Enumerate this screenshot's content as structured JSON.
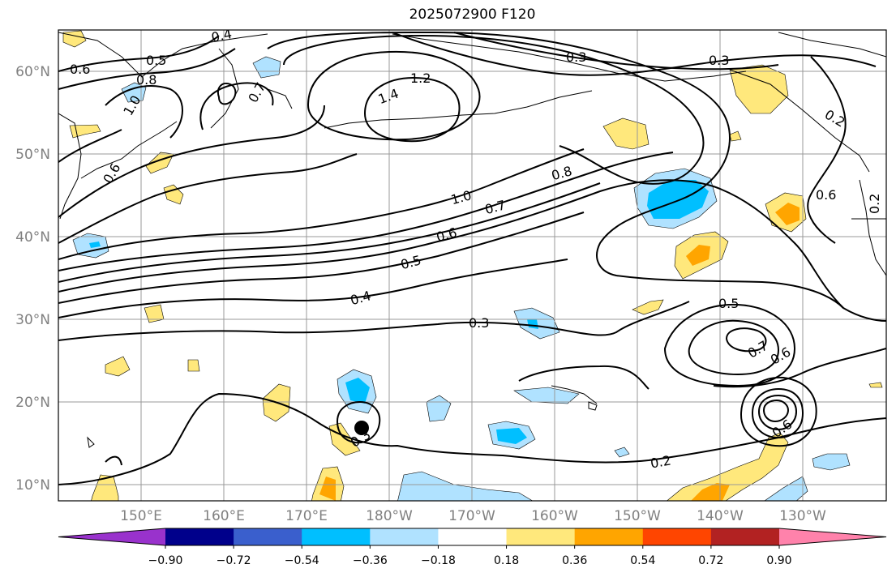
{
  "title": "2025072900 F120",
  "lat_labels": [
    "60°N",
    "50°N",
    "40°N",
    "30°N",
    "20°N",
    "10°N"
  ],
  "lon_labels": [
    "150°E",
    "160°E",
    "170°E",
    "180°W",
    "170°W",
    "160°W",
    "150°W",
    "140°W",
    "130°W"
  ],
  "contour_labels": [
    "0.4",
    "0.5",
    "0.6",
    "0.8",
    "1.0",
    "0.7",
    "1.2",
    "1.4",
    "0.3",
    "0.3",
    "0.2",
    "0.6",
    "0.2",
    "0.6",
    "0.8",
    "0.7",
    "1.0",
    "0.6",
    "0.5",
    "0.4",
    "0.3",
    "0.5",
    "0.7",
    "0.6",
    "0.6",
    "0.2",
    "0.3"
  ],
  "colorbar": {
    "colors": [
      "#9932CC",
      "#00008B",
      "#3A5FCD",
      "#00BFFF",
      "#B0E2FF",
      "#FFFFFF",
      "#FFE87C",
      "#FFA500",
      "#FF4500",
      "#B22222",
      "#FF82AB"
    ],
    "ticks": [
      "−0.90",
      "−0.72",
      "−0.54",
      "−0.36",
      "−0.18",
      "0.18",
      "0.36",
      "0.54",
      "0.72",
      "0.90"
    ]
  },
  "colors": {
    "positive_light": "#FFE87C",
    "positive_mid": "#FFA500",
    "negative_light": "#B0E2FF",
    "negative_mid": "#00BFFF",
    "contour": "#000000",
    "grid": "#999999"
  }
}
